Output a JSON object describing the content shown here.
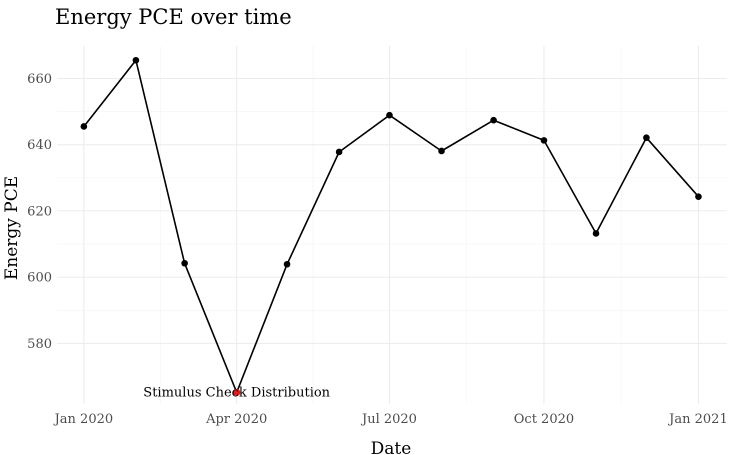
{
  "chart_data": {
    "type": "line",
    "title": "Energy PCE over time",
    "xlabel": "Date",
    "ylabel": "Energy PCE",
    "x": [
      "2020-01-01",
      "2020-02-01",
      "2020-03-01",
      "2020-04-01",
      "2020-05-01",
      "2020-06-01",
      "2020-07-01",
      "2020-08-01",
      "2020-09-01",
      "2020-10-01",
      "2020-11-01",
      "2020-12-01",
      "2021-01-01"
    ],
    "series": [
      {
        "values": [
          645.5,
          665.5,
          604.2,
          565.2,
          603.9,
          637.8,
          648.9,
          638.1,
          647.4,
          641.3,
          613.2,
          642.1,
          624.3
        ]
      }
    ],
    "highlight": {
      "index": 3,
      "color": "#e41a1c"
    },
    "annotation": {
      "text": "Stimulus Check Distribution",
      "x": "2020-04-01",
      "y": 565.2
    },
    "xlim": [
      "2019-12-16",
      "2021-01-18"
    ],
    "ylim": [
      561.7,
      669.8
    ],
    "x_ticks": [
      {
        "value": "2020-01-01",
        "label": "Jan 2020"
      },
      {
        "value": "2020-04-01",
        "label": "Apr 2020"
      },
      {
        "value": "2020-07-01",
        "label": "Jul 2020"
      },
      {
        "value": "2020-10-01",
        "label": "Oct 2020"
      },
      {
        "value": "2021-01-01",
        "label": "Jan 2021"
      }
    ],
    "y_ticks": [
      580,
      600,
      620,
      640,
      660
    ],
    "grid": true,
    "line_color": "#000000",
    "point_color": "#000000",
    "grid_color": "#ebebeb"
  }
}
